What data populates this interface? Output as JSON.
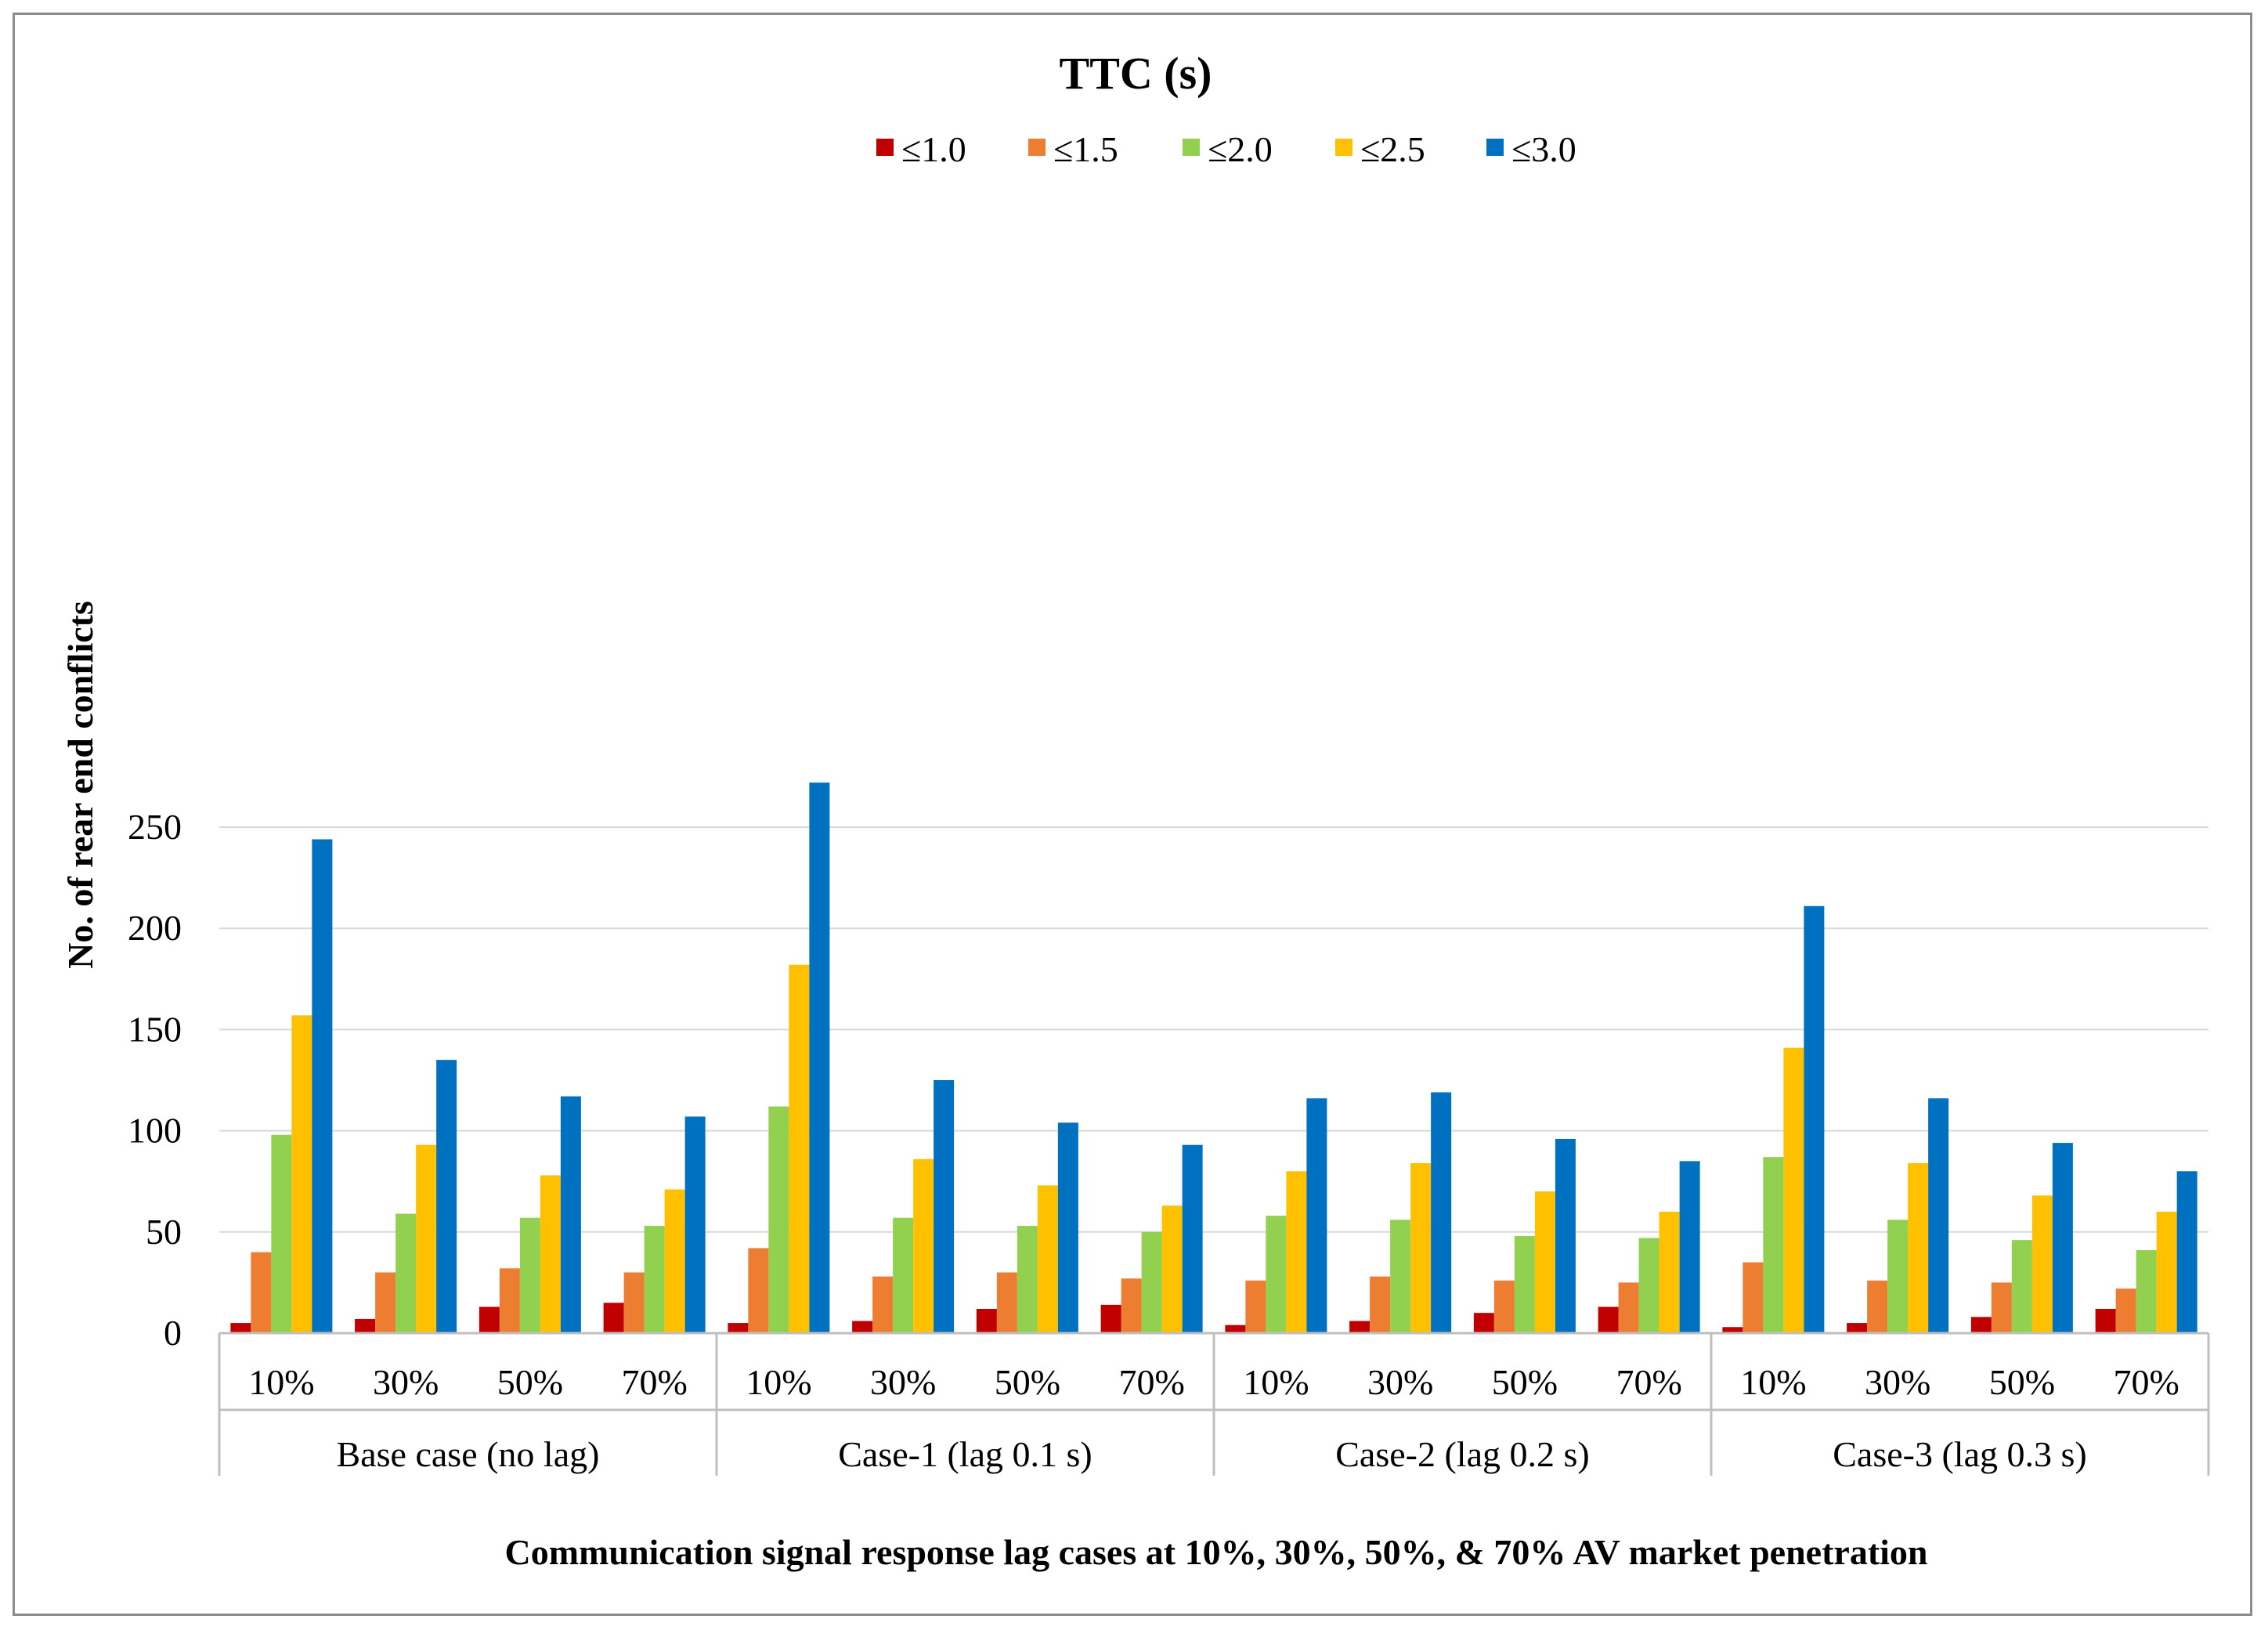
{
  "chart_data": {
    "type": "bar",
    "title": "TTC (s)",
    "xlabel": "Communication signal response lag cases at 10%, 30%, 50%, & 70% AV market penetration",
    "ylabel": "No. of rear end conflicts",
    "ylim": [
      0,
      275
    ],
    "yticks": [
      0,
      50,
      100,
      150,
      200,
      250
    ],
    "grid": true,
    "legend_position": "top-center",
    "groups": [
      "Base case (no lag)",
      "Case-1 (lag 0.1 s)",
      "Case-2 (lag 0.2 s)",
      "Case-3 (lag 0.3 s)"
    ],
    "categories": [
      "10%",
      "30%",
      "50%",
      "70%",
      "10%",
      "30%",
      "50%",
      "70%",
      "10%",
      "30%",
      "50%",
      "70%",
      "10%",
      "30%",
      "50%",
      "70%"
    ],
    "series": [
      {
        "name": "≤1.0",
        "color": "#c00000",
        "values": [
          5,
          7,
          13,
          15,
          5,
          6,
          12,
          14,
          4,
          6,
          10,
          13,
          3,
          5,
          8,
          12
        ]
      },
      {
        "name": "≤1.5",
        "color": "#ed7d31",
        "values": [
          40,
          30,
          32,
          30,
          42,
          28,
          30,
          27,
          26,
          28,
          26,
          25,
          35,
          26,
          25,
          22
        ]
      },
      {
        "name": "≤2.0",
        "color": "#92d050",
        "values": [
          98,
          59,
          57,
          53,
          112,
          57,
          53,
          50,
          58,
          56,
          48,
          47,
          87,
          56,
          46,
          41
        ]
      },
      {
        "name": "≤2.5",
        "color": "#ffc000",
        "values": [
          157,
          93,
          78,
          71,
          182,
          86,
          73,
          63,
          80,
          84,
          70,
          60,
          141,
          84,
          68,
          60
        ]
      },
      {
        "name": "≤3.0",
        "color": "#0070c0",
        "values": [
          244,
          135,
          117,
          107,
          272,
          125,
          104,
          93,
          116,
          119,
          96,
          85,
          211,
          116,
          94,
          80
        ]
      }
    ]
  }
}
